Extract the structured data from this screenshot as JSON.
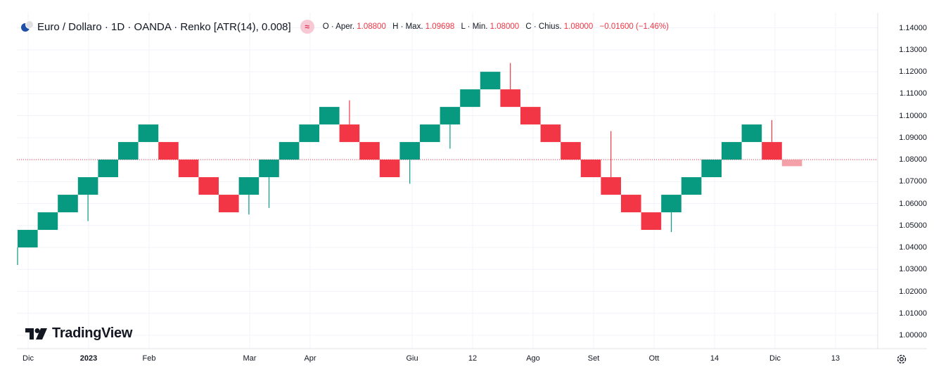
{
  "header": {
    "title": "Euro / Dollaro · 1D · OANDA · Renko [ATR(14), 0.008]",
    "ohlc": {
      "open_label": "O · Aper.",
      "open": "1.08800",
      "high_label": "H · Max.",
      "high": "1.09698",
      "low_label": "L · Min.",
      "low": "1.08000",
      "close_label": "C · Chius.",
      "close": "1.08000",
      "change": "−0.01600 (−1.46%)"
    },
    "indicator_badge": "≈"
  },
  "logo": {
    "text": "TradingView"
  },
  "colors": {
    "up": "#089981",
    "down": "#f23645",
    "pending": "#f4a0a8",
    "price_line": "#f23645",
    "grid": "#f0f3fa"
  },
  "icons": {
    "settings": "settings-gear-icon",
    "symbol": "currency-flags-icon"
  },
  "chart_data": {
    "type": "renko",
    "title": "Euro / Dollaro · 1D · OANDA · Renko [ATR(14), 0.008]",
    "xlabel": "",
    "ylabel": "",
    "box_size": 0.008,
    "ylim": [
      0.996,
      1.144
    ],
    "y_ticks": [
      "1.14000",
      "1.13000",
      "1.12000",
      "1.11000",
      "1.10000",
      "1.09000",
      "1.08000",
      "1.07000",
      "1.06000",
      "1.05000",
      "1.04000",
      "1.03000",
      "1.02000",
      "1.01000",
      "1.00000"
    ],
    "x_ticks": [
      "Dic",
      "2023",
      "Feb",
      "Mar",
      "Apr",
      "Giu",
      "12",
      "Ago",
      "Set",
      "Ott",
      "14",
      "Dic",
      "13"
    ],
    "last_price": 1.08,
    "bricks": [
      {
        "dir": "up",
        "low": 1.04,
        "high": 1.048
      },
      {
        "dir": "up",
        "low": 1.048,
        "high": 1.056
      },
      {
        "dir": "up",
        "low": 1.056,
        "high": 1.064
      },
      {
        "dir": "up",
        "low": 1.064,
        "high": 1.072
      },
      {
        "dir": "up",
        "low": 1.072,
        "high": 1.08
      },
      {
        "dir": "up",
        "low": 1.08,
        "high": 1.088
      },
      {
        "dir": "up",
        "low": 1.088,
        "high": 1.096
      },
      {
        "dir": "down",
        "low": 1.08,
        "high": 1.088
      },
      {
        "dir": "down",
        "low": 1.072,
        "high": 1.08
      },
      {
        "dir": "down",
        "low": 1.064,
        "high": 1.072
      },
      {
        "dir": "down",
        "low": 1.056,
        "high": 1.064
      },
      {
        "dir": "up",
        "low": 1.064,
        "high": 1.072
      },
      {
        "dir": "up",
        "low": 1.072,
        "high": 1.08
      },
      {
        "dir": "up",
        "low": 1.08,
        "high": 1.088
      },
      {
        "dir": "up",
        "low": 1.088,
        "high": 1.096
      },
      {
        "dir": "up",
        "low": 1.096,
        "high": 1.104
      },
      {
        "dir": "down",
        "low": 1.088,
        "high": 1.096
      },
      {
        "dir": "down",
        "low": 1.08,
        "high": 1.088
      },
      {
        "dir": "down",
        "low": 1.072,
        "high": 1.08
      },
      {
        "dir": "up",
        "low": 1.08,
        "high": 1.088
      },
      {
        "dir": "up",
        "low": 1.088,
        "high": 1.096
      },
      {
        "dir": "up",
        "low": 1.096,
        "high": 1.104
      },
      {
        "dir": "up",
        "low": 1.104,
        "high": 1.112
      },
      {
        "dir": "up",
        "low": 1.112,
        "high": 1.12
      },
      {
        "dir": "down",
        "low": 1.104,
        "high": 1.112
      },
      {
        "dir": "down",
        "low": 1.096,
        "high": 1.104
      },
      {
        "dir": "down",
        "low": 1.088,
        "high": 1.096
      },
      {
        "dir": "down",
        "low": 1.08,
        "high": 1.088
      },
      {
        "dir": "down",
        "low": 1.072,
        "high": 1.08
      },
      {
        "dir": "down",
        "low": 1.064,
        "high": 1.072
      },
      {
        "dir": "down",
        "low": 1.056,
        "high": 1.064
      },
      {
        "dir": "down",
        "low": 1.048,
        "high": 1.056
      },
      {
        "dir": "up",
        "low": 1.056,
        "high": 1.064
      },
      {
        "dir": "up",
        "low": 1.064,
        "high": 1.072
      },
      {
        "dir": "up",
        "low": 1.072,
        "high": 1.08
      },
      {
        "dir": "up",
        "low": 1.08,
        "high": 1.088
      },
      {
        "dir": "up",
        "low": 1.088,
        "high": 1.096
      },
      {
        "dir": "down",
        "low": 1.08,
        "high": 1.088
      },
      {
        "dir": "pending",
        "low": 1.077,
        "high": 1.08
      }
    ],
    "wicks": [
      {
        "brick": 0,
        "low": 1.032,
        "high": 1.04
      },
      {
        "brick": 3,
        "low": 1.052,
        "high": 1.064
      },
      {
        "brick": 11,
        "low": 1.055,
        "high": 1.064
      },
      {
        "brick": 12,
        "low": 1.058,
        "high": 1.072
      },
      {
        "brick": 16,
        "low": 1.096,
        "high": 1.107
      },
      {
        "brick": 19,
        "low": 1.069,
        "high": 1.08
      },
      {
        "brick": 21,
        "low": 1.085,
        "high": 1.096
      },
      {
        "brick": 24,
        "low": 1.112,
        "high": 1.124
      },
      {
        "brick": 29,
        "low": 1.072,
        "high": 1.093
      },
      {
        "brick": 32,
        "low": 1.047,
        "high": 1.056
      },
      {
        "brick": 37,
        "low": 1.088,
        "high": 1.098
      }
    ]
  }
}
